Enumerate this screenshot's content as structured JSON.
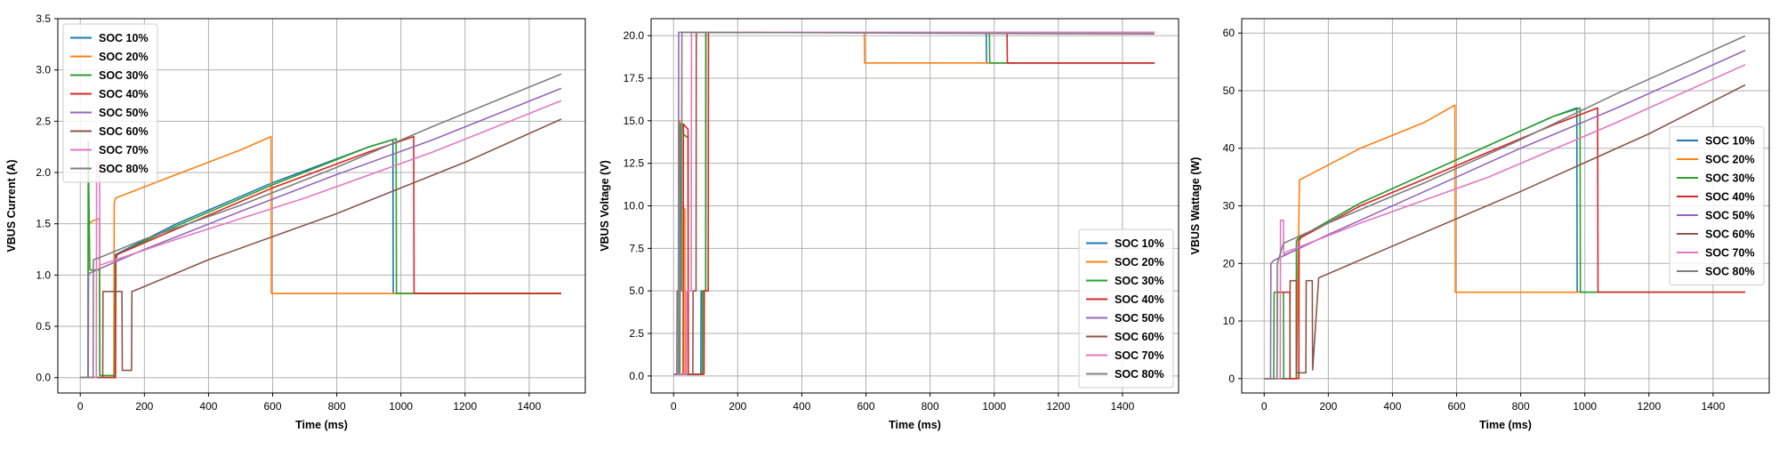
{
  "colors": {
    "SOC 10%": "#1f77b4",
    "SOC 20%": "#ff7f0e",
    "SOC 30%": "#2ca02c",
    "SOC 40%": "#d62728",
    "SOC 50%": "#9467bd",
    "SOC 60%": "#8c564b",
    "SOC 70%": "#e377c2",
    "SOC 80%": "#7f7f7f"
  },
  "chart_data": [
    {
      "type": "line",
      "title": "",
      "xlabel": "Time (ms)",
      "ylabel": "VBUS Current (A)",
      "xlim": [
        -70,
        1575
      ],
      "ylim": [
        -0.15,
        3.5
      ],
      "xticks": [
        0,
        200,
        400,
        600,
        800,
        1000,
        1200,
        1400
      ],
      "yticks": [
        0.0,
        0.5,
        1.0,
        1.5,
        2.0,
        2.5,
        3.0,
        3.5
      ],
      "ytick_labels": [
        "0.0",
        "0.5",
        "1.0",
        "1.5",
        "2.0",
        "2.5",
        "3.0",
        "3.5"
      ],
      "grid": true,
      "legend": "top-left",
      "series": [
        {
          "name": "SOC 10%",
          "x": [
            0,
            105,
            106,
            110,
            300,
            600,
            900,
            975,
            976,
            1500
          ],
          "y": [
            0.0,
            0.0,
            1.15,
            1.2,
            1.5,
            1.9,
            2.25,
            2.32,
            0.82,
            0.82
          ]
        },
        {
          "name": "SOC 20%",
          "x": [
            0,
            24,
            25,
            40,
            60,
            61,
            105,
            106,
            110,
            300,
            500,
            595,
            596,
            1500
          ],
          "y": [
            0.0,
            0.0,
            1.5,
            1.53,
            1.55,
            0.02,
            0.02,
            1.7,
            1.75,
            1.98,
            2.22,
            2.35,
            0.82,
            0.82
          ]
        },
        {
          "name": "SOC 30%",
          "x": [
            0,
            24,
            25,
            30,
            31,
            60,
            61,
            108,
            109,
            115,
            300,
            600,
            900,
            985,
            986,
            1500
          ],
          "y": [
            0.0,
            0.0,
            2.3,
            1.05,
            1.05,
            1.05,
            0.02,
            0.02,
            1.15,
            1.2,
            1.48,
            1.88,
            2.25,
            2.33,
            0.82,
            0.82
          ]
        },
        {
          "name": "SOC 40%",
          "x": [
            0,
            110,
            111,
            115,
            300,
            600,
            900,
            1040,
            1041,
            1500
          ],
          "y": [
            0.0,
            0.0,
            1.15,
            1.2,
            1.45,
            1.85,
            2.2,
            2.35,
            0.82,
            0.82
          ]
        },
        {
          "name": "SOC 50%",
          "x": [
            0,
            25,
            26,
            30,
            200,
            500,
            800,
            1100,
            1500
          ],
          "y": [
            0.0,
            0.0,
            1.0,
            1.02,
            1.25,
            1.62,
            1.98,
            2.32,
            2.82
          ]
        },
        {
          "name": "SOC 60%",
          "x": [
            0,
            70,
            71,
            130,
            131,
            160,
            161,
            170,
            400,
            800,
            1200,
            1500
          ],
          "y": [
            0.0,
            0.0,
            0.84,
            0.84,
            0.07,
            0.07,
            0.84,
            0.85,
            1.15,
            1.6,
            2.1,
            2.52
          ]
        },
        {
          "name": "SOC 70%",
          "x": [
            0,
            50,
            51,
            60,
            61,
            65,
            300,
            700,
            1100,
            1500
          ],
          "y": [
            0.0,
            0.0,
            2.1,
            2.1,
            1.1,
            1.1,
            1.35,
            1.75,
            2.2,
            2.7
          ]
        },
        {
          "name": "SOC 80%",
          "x": [
            0,
            40,
            41,
            60,
            200,
            500,
            800,
            1100,
            1500
          ],
          "y": [
            0.0,
            0.0,
            1.15,
            1.17,
            1.35,
            1.68,
            2.05,
            2.45,
            2.96
          ]
        }
      ]
    },
    {
      "type": "line",
      "title": "",
      "xlabel": "Time (ms)",
      "ylabel": "VBUS Voltage (V)",
      "xlim": [
        -70,
        1575
      ],
      "ylim": [
        -1.0,
        21.0
      ],
      "xticks": [
        0,
        200,
        400,
        600,
        800,
        1000,
        1200,
        1400
      ],
      "yticks": [
        0.0,
        2.5,
        5.0,
        7.5,
        10.0,
        12.5,
        15.0,
        17.5,
        20.0
      ],
      "ytick_labels": [
        "0.0",
        "2.5",
        "5.0",
        "7.5",
        "10.0",
        "12.5",
        "15.0",
        "17.5",
        "20.0"
      ],
      "grid": true,
      "legend": "bottom-right",
      "series": [
        {
          "name": "SOC 10%",
          "x": [
            0,
            85,
            86,
            100,
            101,
            975,
            976,
            1500
          ],
          "y": [
            0.1,
            0.1,
            5.0,
            5.0,
            20.2,
            20.2,
            18.4,
            18.4
          ]
        },
        {
          "name": "SOC 20%",
          "x": [
            0,
            15,
            16,
            20,
            21,
            35,
            36,
            90,
            91,
            100,
            101,
            595,
            596,
            1500
          ],
          "y": [
            0.1,
            0.1,
            15.0,
            15.0,
            10.0,
            9.8,
            0.1,
            0.1,
            5.0,
            5.0,
            20.2,
            20.2,
            18.4,
            18.4
          ]
        },
        {
          "name": "SOC 30%",
          "x": [
            0,
            20,
            21,
            30,
            31,
            45,
            46,
            90,
            91,
            100,
            101,
            985,
            986,
            1500
          ],
          "y": [
            0.1,
            0.1,
            14.8,
            14.8,
            14.2,
            14.0,
            0.1,
            0.1,
            5.0,
            5.0,
            20.2,
            20.2,
            18.4,
            18.4
          ]
        },
        {
          "name": "SOC 40%",
          "x": [
            0,
            30,
            31,
            45,
            46,
            95,
            96,
            108,
            109,
            1040,
            1041,
            1500
          ],
          "y": [
            0.1,
            0.1,
            14.8,
            14.5,
            0.1,
            0.1,
            5.0,
            5.0,
            20.2,
            20.2,
            18.4,
            18.4
          ]
        },
        {
          "name": "SOC 50%",
          "x": [
            0,
            15,
            16,
            1500
          ],
          "y": [
            0.1,
            0.1,
            20.2,
            20.2
          ]
        },
        {
          "name": "SOC 60%",
          "x": [
            0,
            60,
            61,
            70,
            71,
            1500
          ],
          "y": [
            0.1,
            0.1,
            5.0,
            5.0,
            20.2,
            20.2
          ]
        },
        {
          "name": "SOC 70%",
          "x": [
            0,
            40,
            41,
            55,
            56,
            1500
          ],
          "y": [
            0.1,
            0.1,
            5.0,
            5.0,
            20.2,
            20.2
          ]
        },
        {
          "name": "SOC 80%",
          "x": [
            0,
            10,
            11,
            25,
            26,
            1500
          ],
          "y": [
            0.1,
            0.1,
            5.0,
            5.0,
            20.2,
            20.1
          ]
        }
      ]
    },
    {
      "type": "line",
      "title": "",
      "xlabel": "Time (ms)",
      "ylabel": "VBUS Wattage (W)",
      "xlim": [
        -70,
        1575
      ],
      "ylim": [
        -2.5,
        62.5
      ],
      "xticks": [
        0,
        200,
        400,
        600,
        800,
        1000,
        1200,
        1400
      ],
      "yticks": [
        0,
        10,
        20,
        30,
        40,
        50,
        60
      ],
      "ytick_labels": [
        "0",
        "10",
        "20",
        "30",
        "40",
        "50",
        "60"
      ],
      "grid": true,
      "legend": "center-right",
      "series": [
        {
          "name": "SOC 10%",
          "x": [
            0,
            100,
            101,
            110,
            300,
            600,
            900,
            975,
            976,
            1500
          ],
          "y": [
            0.0,
            0.0,
            24.0,
            24.5,
            30.5,
            38.0,
            45.5,
            47.0,
            15.0,
            15.0
          ]
        },
        {
          "name": "SOC 20%",
          "x": [
            0,
            100,
            101,
            110,
            300,
            500,
            595,
            596,
            1500
          ],
          "y": [
            0.0,
            0.0,
            0.0,
            34.5,
            40.0,
            44.5,
            47.5,
            15.0,
            15.0
          ]
        },
        {
          "name": "SOC 30%",
          "x": [
            0,
            30,
            31,
            60,
            61,
            100,
            101,
            110,
            300,
            600,
            900,
            985,
            986,
            1500
          ],
          "y": [
            0.0,
            0.0,
            15.0,
            15.0,
            0.0,
            0.0,
            24.0,
            24.5,
            30.5,
            38.0,
            45.5,
            47.0,
            15.0,
            15.0
          ]
        },
        {
          "name": "SOC 40%",
          "x": [
            0,
            40,
            41,
            80,
            81,
            108,
            109,
            115,
            300,
            600,
            900,
            1040,
            1041,
            1500
          ],
          "y": [
            0.0,
            0.0,
            15.0,
            15.0,
            0.0,
            0.0,
            24.0,
            24.5,
            30.0,
            37.0,
            44.0,
            47.0,
            15.0,
            15.0
          ]
        },
        {
          "name": "SOC 50%",
          "x": [
            0,
            20,
            21,
            30,
            200,
            500,
            800,
            1100,
            1500
          ],
          "y": [
            0.0,
            0.0,
            20.0,
            20.5,
            25.0,
            32.5,
            40.0,
            47.0,
            57.0
          ]
        },
        {
          "name": "SOC 60%",
          "x": [
            0,
            80,
            81,
            100,
            101,
            130,
            131,
            150,
            151,
            170,
            400,
            800,
            1200,
            1500
          ],
          "y": [
            0.0,
            0.0,
            17.0,
            17.0,
            1.0,
            1.0,
            17.0,
            17.0,
            1.5,
            17.5,
            23.0,
            32.5,
            42.5,
            51.0
          ]
        },
        {
          "name": "SOC 70%",
          "x": [
            0,
            50,
            51,
            60,
            61,
            70,
            300,
            700,
            1100,
            1500
          ],
          "y": [
            0.0,
            0.0,
            27.5,
            27.5,
            21.5,
            22.0,
            27.0,
            35.0,
            44.5,
            54.5
          ]
        },
        {
          "name": "SOC 80%",
          "x": [
            0,
            40,
            41,
            60,
            200,
            500,
            800,
            1100,
            1500
          ],
          "y": [
            0.0,
            0.0,
            20.0,
            23.5,
            27.0,
            34.0,
            41.5,
            49.5,
            59.5
          ]
        }
      ]
    }
  ]
}
